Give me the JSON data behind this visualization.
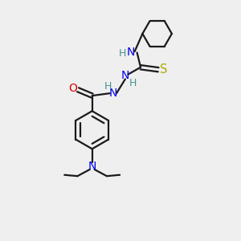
{
  "bg_color": "#efefef",
  "bond_color": "#1a1a1a",
  "N_color": "#0000ee",
  "O_color": "#dd0000",
  "S_color": "#aaaa00",
  "H_color": "#4a9090",
  "line_width": 1.6,
  "figsize": [
    3.0,
    3.0
  ],
  "dpi": 100,
  "xlim": [
    0,
    10
  ],
  "ylim": [
    0,
    10
  ]
}
